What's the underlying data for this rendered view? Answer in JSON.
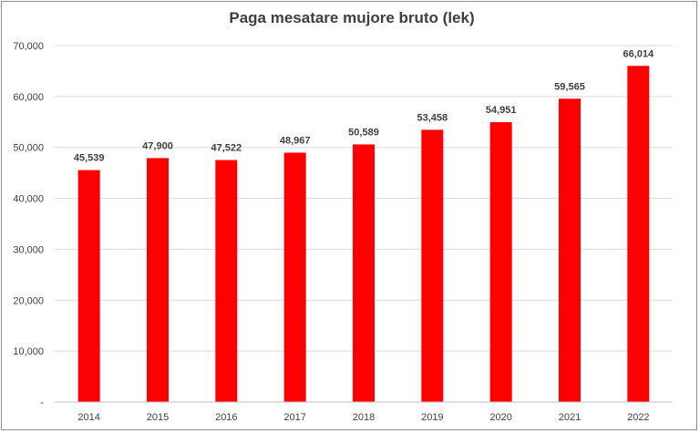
{
  "chart_data": {
    "type": "bar",
    "title": "Paga mesatare mujore bruto (lek)",
    "xlabel": "",
    "ylabel": "",
    "categories": [
      "2014",
      "2015",
      "2016",
      "2017",
      "2018",
      "2019",
      "2020",
      "2021",
      "2022"
    ],
    "values": [
      45539,
      47900,
      47522,
      48967,
      50589,
      53458,
      54951,
      59565,
      66014
    ],
    "value_labels": [
      "45,539",
      "47,900",
      "47,522",
      "48,967",
      "50,589",
      "53,458",
      "54,951",
      "59,565",
      "66,014"
    ],
    "ylim": [
      0,
      70000
    ],
    "yticks": [
      0,
      10000,
      20000,
      30000,
      40000,
      50000,
      60000,
      70000
    ],
    "ytick_labels": [
      "-",
      "10,000",
      "20,000",
      "30,000",
      "40,000",
      "50,000",
      "60,000",
      "70,000"
    ],
    "bar_color": "#ff0000",
    "grid": true,
    "legend": "none"
  }
}
